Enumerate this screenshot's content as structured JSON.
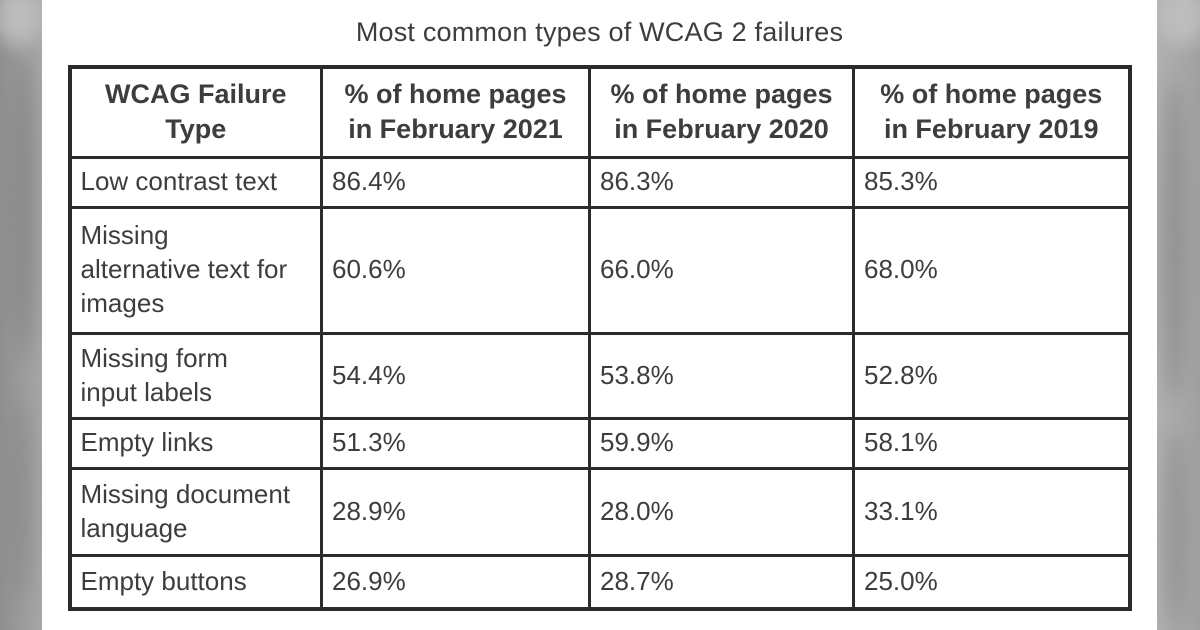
{
  "page": {
    "title": "Most common types of WCAG 2 failures"
  },
  "table": {
    "headers": [
      "WCAG Failure\nType",
      "% of home pages\nin February 2021",
      "% of home pages\nin February 2020",
      "% of home pages\nin February 2019"
    ],
    "rows": [
      {
        "type": "Low contrast text",
        "values": [
          "86.4%",
          "86.3%",
          "85.3%"
        ]
      },
      {
        "type": "Missing\nalternative text for\nimages",
        "values": [
          "60.6%",
          "66.0%",
          "68.0%"
        ]
      },
      {
        "type": "Missing form\ninput labels",
        "values": [
          "54.4%",
          "53.8%",
          "52.8%"
        ]
      },
      {
        "type": "Empty links",
        "values": [
          "51.3%",
          "59.9%",
          "58.1%"
        ]
      },
      {
        "type": "Missing document\nlanguage",
        "values": [
          "28.9%",
          "28.0%",
          "33.1%"
        ]
      },
      {
        "type": "Empty buttons",
        "values": [
          "26.9%",
          "28.7%",
          "25.0%"
        ]
      }
    ]
  },
  "chart_data": {
    "type": "table",
    "title": "Most common types of WCAG 2 failures",
    "columns": [
      "WCAG Failure Type",
      "% of home pages in February 2021",
      "% of home pages in February 2020",
      "% of home pages in February 2019"
    ],
    "rows": [
      [
        "Low contrast text",
        86.4,
        86.3,
        85.3
      ],
      [
        "Missing alternative text for images",
        60.6,
        66.0,
        68.0
      ],
      [
        "Missing form input labels",
        54.4,
        53.8,
        52.8
      ],
      [
        "Empty links",
        51.3,
        59.9,
        58.1
      ],
      [
        "Missing document language",
        28.9,
        28.0,
        33.1
      ],
      [
        "Empty buttons",
        26.9,
        28.7,
        25.0
      ]
    ]
  },
  "colors": {
    "border": "#2b2b2b",
    "text": "#3d3d3d",
    "panel_bg": "#ffffff",
    "band_base": "#a2a2a2",
    "band_dark": "#858585",
    "band_light": "#c0c0c0"
  }
}
